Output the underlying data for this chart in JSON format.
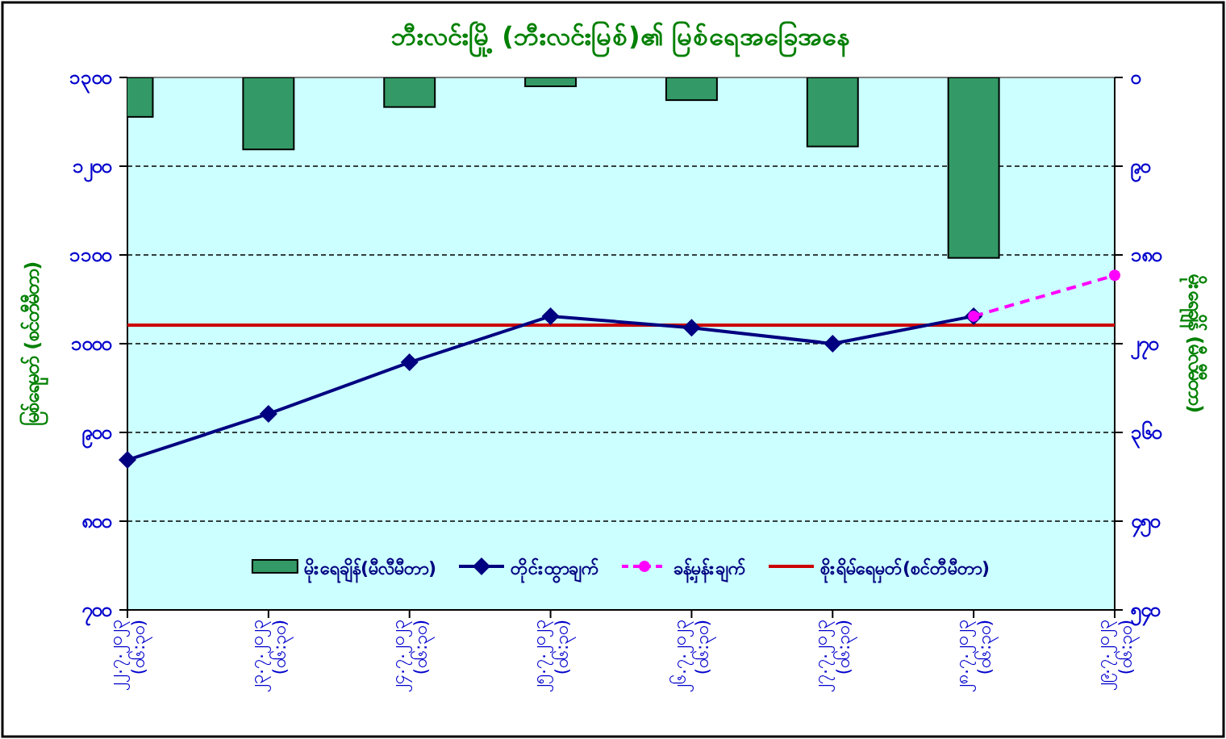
{
  "chart_data": {
    "type": "line",
    "title": "ဘီးလင်းမြို့ (ဘီးလင်းမြစ်)၏ မြစ်ရေအခြေအနေ",
    "ylabel": "မြစ်ရေမှတ် (စင်တီမီတာ)",
    "y2label": "မိုးရေချိန် (မီလီမီတာ)",
    "categories": [
      "၂၂.၇.၂၀၂၃ (၀၆:၃၀)",
      "၂၃.၇.၂၀၂၃ (၀၆:၃၀)",
      "၂၄.၇.၂၀၂၃ (၀၆:၃၀)",
      "၂၅.၇.၂၀၂၃ (၀၆:၃၀)",
      "၂၆.၇.၂၀၂၃ (၀၆:၃၀)",
      "၂၇.၇.၂၀၂၃ (၀၆:၃၀)",
      "၂၈.၇.၂၀၂၃ (၀၆:၃၀)",
      "၂၉.၇.၂၀၂၃ (၀၆:၃၀)"
    ],
    "series": [
      {
        "name": "မိုးရေချိန်(မီလီမီတာ)",
        "type": "bar",
        "axis": "y2",
        "color": "#339966",
        "values": [
          40,
          73,
          30,
          9,
          23,
          70,
          183,
          null
        ]
      },
      {
        "name": "တိုင်းထွာချက်",
        "color": "#000080",
        "marker": "diamond",
        "line_style": "solid",
        "values": [
          869,
          921,
          979,
          1031,
          1018,
          1000,
          1031,
          null
        ]
      },
      {
        "name": "ခန့်မှန်းချက်",
        "color": "#ff00ff",
        "marker": "circle",
        "line_style": "dashed",
        "values": [
          null,
          null,
          null,
          null,
          null,
          null,
          1031,
          1077
        ]
      }
    ],
    "ylim": [
      700,
      1300
    ],
    "yticks": [
      {
        "value": 700,
        "label": "၇၀၀"
      },
      {
        "value": 800,
        "label": "၈၀၀"
      },
      {
        "value": 900,
        "label": "၉၀၀"
      },
      {
        "value": 1000,
        "label": "၁၀၀၀"
      },
      {
        "value": 1100,
        "label": "၁၁၀၀"
      },
      {
        "value": 1200,
        "label": "၁၂၀၀"
      },
      {
        "value": 1300,
        "label": "၁၃၀၀"
      }
    ],
    "y2lim": [
      540,
      0
    ],
    "y2ticks": [
      {
        "value": 0,
        "label": "၀"
      },
      {
        "value": 90,
        "label": "၉၀"
      },
      {
        "value": 180,
        "label": "၁၈၀"
      },
      {
        "value": 270,
        "label": "၂၇၀"
      },
      {
        "value": 360,
        "label": "၃၆၀"
      },
      {
        "value": 450,
        "label": "၄၅၀"
      },
      {
        "value": 540,
        "label": "၅၄၀"
      }
    ],
    "ref_lines": [
      {
        "axis": "y",
        "value": 1021,
        "label": "စိုးရိမ်ရေမှတ်(စင်တီမီတာ)",
        "color": "#cc0000"
      }
    ],
    "grid": "y",
    "legend": "bottom"
  }
}
